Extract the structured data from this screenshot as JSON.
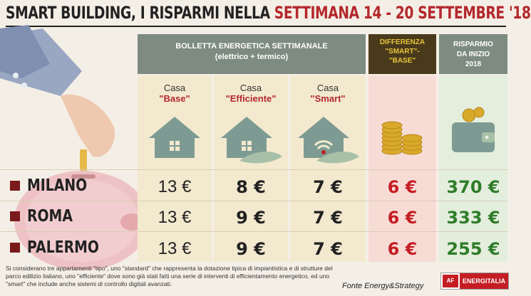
{
  "title": {
    "part1": "SMART BUILDING, I RISPARMI NELLA ",
    "part2": "SETTIMANA 14 - 20 SETTEMBRE '18"
  },
  "header": {
    "bill_line1": "BOLLETTA ENERGETICA SETTIMANALE",
    "bill_line2": "(elettrico + termico)",
    "diff_line1": "DIFFERENZA",
    "diff_line2": "\"SMART\"-",
    "diff_line3": "\"BASE\"",
    "save_line1": "RISPARMIO",
    "save_line2": "DA INIZIO",
    "save_line3": "2018"
  },
  "columns": {
    "base": {
      "pre": "Casa",
      "name": "\"Base\""
    },
    "eff": {
      "pre": "Casa",
      "name": "\"Efficiente\""
    },
    "smart": {
      "pre": "Casa",
      "name": "\"Smart\""
    }
  },
  "rows": [
    {
      "city": "MILANO",
      "base": "13 €",
      "eff": "8 €",
      "smart": "7 €",
      "diff": "6 €",
      "save": "370 €"
    },
    {
      "city": "ROMA",
      "base": "13 €",
      "eff": "9 €",
      "smart": "7 €",
      "diff": "6 €",
      "save": "333 €"
    },
    {
      "city": "PALERMO",
      "base": "13 €",
      "eff": "9 €",
      "smart": "7 €",
      "diff": "6 €",
      "save": "255 €"
    }
  ],
  "note": "Si considerano tre appartamenti \"tipo\", uno \"standard\" che rappresenta la dotazione tipica di impiantistica e di strutture del parco edilizio italiano, uno \"efficiente\" dove sono già stati fatti una serie di interventi di efficientamento energetico, ed uno \"smart\" che include anche sistemi di controllo digitali avanzati.",
  "source": "Fonte Energy&Strategy",
  "brand": {
    "mark": "AF",
    "name": "ENERGITALIA"
  },
  "colors": {
    "accent": "#b3282d",
    "header_gray": "#7d8b80",
    "diff_dark": "#4a3a1c",
    "diff_text": "#e9c43a",
    "green": "#2f7d2a"
  }
}
